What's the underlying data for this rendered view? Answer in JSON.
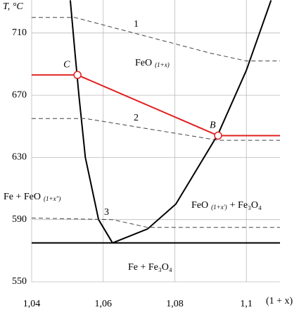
{
  "chart_data": {
    "type": "line",
    "y_label": "T, °C",
    "x_label": "(1 + x)",
    "xlim": [
      1.04,
      1.1094
    ],
    "ylim": [
      550,
      731.2
    ],
    "xticks": [
      {
        "value": 1.04,
        "label": "1,04"
      },
      {
        "value": 1.06,
        "label": "1,06"
      },
      {
        "value": 1.08,
        "label": "1,08"
      },
      {
        "value": 1.1,
        "label": "1,1"
      }
    ],
    "yticks": [
      550,
      590,
      630,
      670,
      710
    ],
    "grid": true,
    "series": [
      {
        "color": "#000000",
        "style": "solid",
        "x": [
          1.0508,
          1.052,
          1.0532,
          1.055,
          1.0587,
          1.0626
        ],
        "values": [
          731,
          700,
          670,
          630,
          590,
          575
        ]
      },
      {
        "color": "#000000",
        "style": "solid",
        "x": [
          1.0626,
          1.0724,
          1.0803,
          1.0921,
          1.1,
          1.1069
        ],
        "values": [
          575,
          584,
          600,
          645,
          686,
          731
        ]
      },
      {
        "color": "#000000",
        "style": "solid",
        "x": [
          1.04,
          1.1094
        ],
        "values": [
          575,
          575
        ]
      },
      {
        "color": "#e02020",
        "style": "solid",
        "x": [
          1.04,
          1.0528,
          1.0921,
          1.1094
        ],
        "values": [
          683,
          683,
          644,
          644
        ]
      },
      {
        "name": "1",
        "color": "#444444",
        "style": "dashed",
        "x": [
          1.04,
          1.052,
          1.09,
          1.1,
          1.1094
        ],
        "values": [
          720,
          720,
          697,
          692,
          692
        ]
      },
      {
        "name": "2",
        "color": "#444444",
        "style": "dashed",
        "x": [
          1.04,
          1.055,
          1.0921,
          1.1094
        ],
        "values": [
          655,
          655,
          641,
          641
        ]
      },
      {
        "name": "3",
        "color": "#444444",
        "style": "dashed",
        "x": [
          1.04,
          1.0626,
          1.0724,
          1.1094
        ],
        "values": [
          591,
          590,
          585,
          585
        ]
      }
    ],
    "points": [
      {
        "label": "C",
        "x": 1.0528,
        "y": 683
      },
      {
        "label": "B",
        "x": 1.0921,
        "y": 644
      }
    ],
    "regions": [
      {
        "text": "FeO",
        "sub": "(1+x)"
      },
      {
        "text": "Fe + FeO",
        "sub": "(1+x″)"
      },
      {
        "text": "FeO",
        "sub": "(1+x′)",
        "after": "+ Fe₃O₄"
      },
      {
        "text": "Fe + Fe₃O₄"
      }
    ]
  }
}
